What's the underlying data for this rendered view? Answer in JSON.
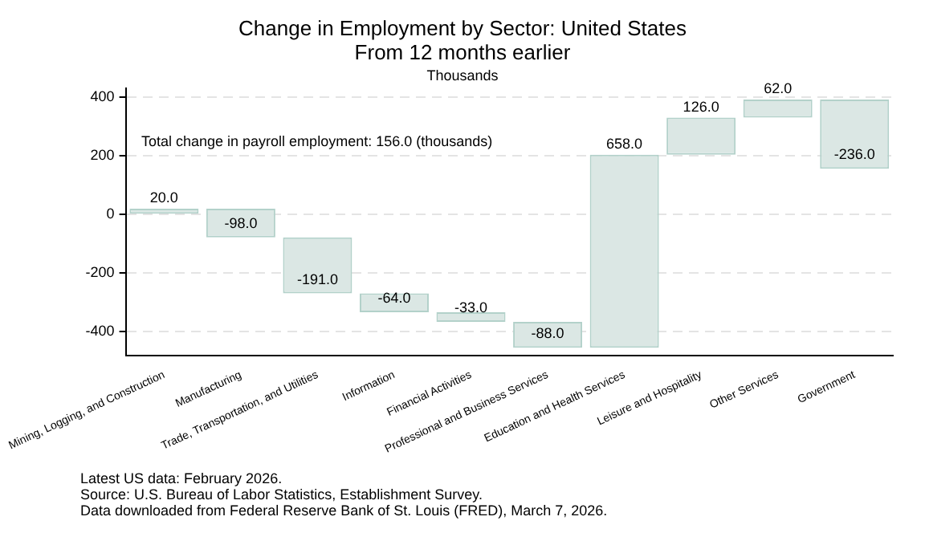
{
  "chart_data": {
    "type": "bar",
    "title": "Change in Employment by Sector:  United States\nFrom 12 months earlier",
    "subtitle": "Thousands",
    "categories": [
      "Mining, Logging, and Construction",
      "Manufacturing",
      "Trade, Transportation, and Utilities",
      "Information",
      "Financial Activities",
      "Professional and Business Services",
      "Education and Health Services",
      "Leisure and Hospitality",
      "Other Services",
      "Government"
    ],
    "values": [
      20,
      -98,
      -191,
      -64,
      -33,
      -88,
      658,
      126,
      62,
      -236
    ],
    "base": [
      0,
      20,
      -78,
      -269,
      -333,
      -366,
      -454,
      204,
      330,
      392
    ],
    "value_labels": [
      "20.0",
      "-98.0",
      "-191.0",
      "-64.0",
      "-33.0",
      "-88.0",
      "658.0",
      "126.0",
      "62.0",
      "-236.0"
    ],
    "color": "#dbe7e4",
    "ylim": [
      -480,
      430
    ],
    "yticks": [
      -400,
      -200,
      0,
      200,
      400
    ],
    "grid": "y",
    "annotations": [
      "Total change in payroll employment:  156.0 (thousands)",
      "Latest US data:  February 2026.",
      "Source:  U.S. Bureau of Labor Statistics, Establishment Survey.",
      "Data downloaded from Federal Reserve Bank of St. Louis (FRED), March 7, 2026."
    ]
  }
}
